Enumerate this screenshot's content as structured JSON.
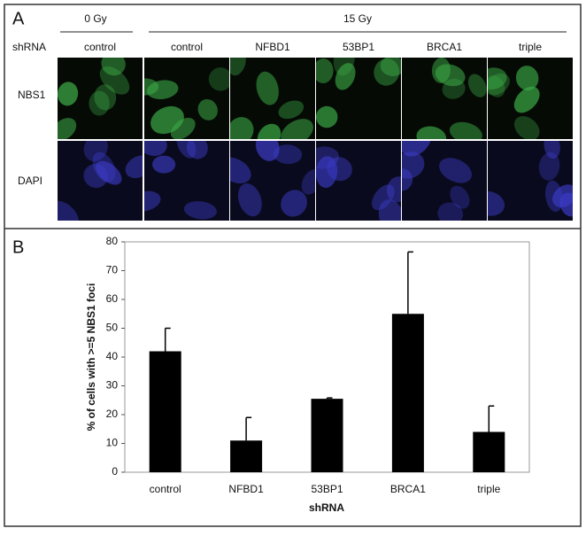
{
  "panel_a": {
    "label": "A",
    "dose_labels": [
      "0 Gy",
      "15 Gy"
    ],
    "row_header": "shRNA",
    "columns": [
      "control",
      "control",
      "NFBD1",
      "53BP1",
      "BRCA1",
      "triple"
    ],
    "rows": [
      "NBS1",
      "DAPI"
    ]
  },
  "chart_data": {
    "type": "bar",
    "panel_label": "B",
    "y_label": "% of cells with >=5 NBS1 foci",
    "x_label": "shRNA",
    "categories": [
      "control",
      "NFBD1",
      "53BP1",
      "BRCA1",
      "triple"
    ],
    "values": [
      42,
      11,
      25.5,
      55,
      14
    ],
    "errors": [
      8,
      8,
      0.3,
      21.5,
      9
    ],
    "color": "#000000",
    "ylim": [
      0,
      80
    ],
    "yticks": [
      0,
      10,
      20,
      30,
      40,
      50,
      60,
      70,
      80
    ],
    "grid": false
  }
}
